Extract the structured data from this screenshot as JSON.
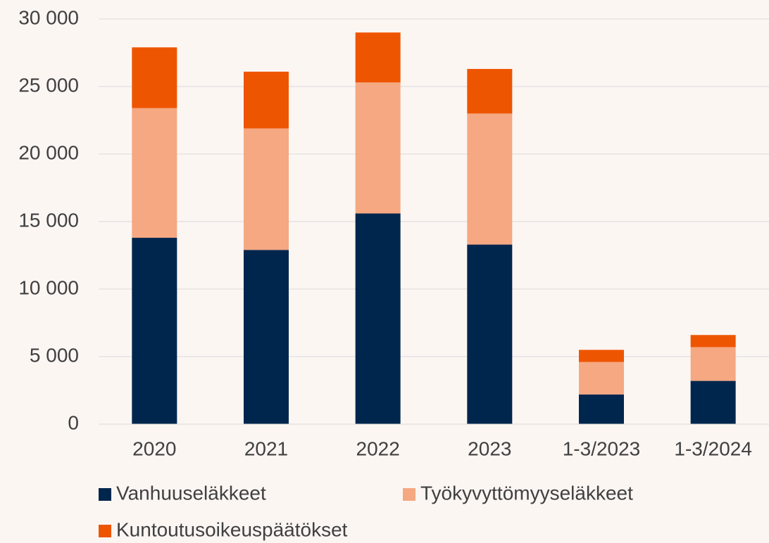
{
  "chart_data": {
    "type": "stacked_bar",
    "categories": [
      "2020",
      "2021",
      "2022",
      "2023",
      "1-3/2023",
      "1-3/2024"
    ],
    "series": [
      {
        "name": "Vanhuuseläkkeet",
        "color": "#00264d",
        "values": [
          13800,
          12900,
          15600,
          13300,
          2200,
          3200
        ]
      },
      {
        "name": "Työkyvyttömyyseläkkeet",
        "color": "#f5a882",
        "values": [
          9600,
          9000,
          9700,
          9700,
          2400,
          2500
        ]
      },
      {
        "name": "Kuntoutusoikeuspäätökset",
        "color": "#ee5500",
        "values": [
          4500,
          4200,
          3700,
          3300,
          900,
          900
        ]
      }
    ],
    "ylim": [
      0,
      30000
    ],
    "yticks": [
      0,
      {
        "value": 5000,
        "label": "5 000"
      },
      {
        "value": 10000,
        "label": "10 000"
      },
      {
        "value": 15000,
        "label": "15 000"
      },
      {
        "value": 20000,
        "label": "20 000"
      },
      {
        "value": 25000,
        "label": "25 000"
      },
      {
        "value": 30000,
        "label": "30 000"
      }
    ],
    "grid": true
  }
}
